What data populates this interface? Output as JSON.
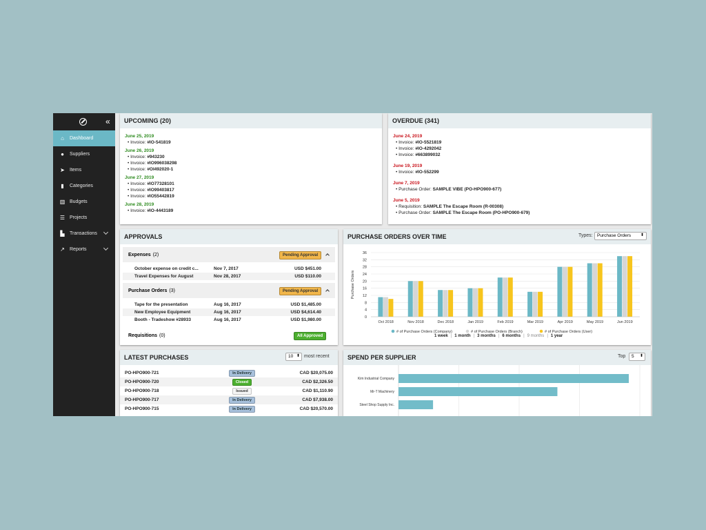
{
  "sidebar": {
    "collapse_icon": "«",
    "items": [
      {
        "label": "Dashboard",
        "icon": "home-icon",
        "active": true
      },
      {
        "label": "Suppliers",
        "icon": "globe-icon"
      },
      {
        "label": "Items",
        "icon": "rocket-icon"
      },
      {
        "label": "Categories",
        "icon": "book-icon"
      },
      {
        "label": "Budgets",
        "icon": "bar-chart-icon"
      },
      {
        "label": "Projects",
        "icon": "list-icon"
      },
      {
        "label": "Transactions",
        "icon": "cart-icon",
        "expandable": true
      },
      {
        "label": "Reports",
        "icon": "line-chart-icon",
        "expandable": true
      }
    ]
  },
  "upcoming": {
    "title": "UPCOMING (20)",
    "groups": [
      {
        "date": "June 25, 2019",
        "items": [
          {
            "label": "Invoice:",
            "value": "#IO-541819"
          }
        ]
      },
      {
        "date": "June 26, 2019",
        "items": [
          {
            "label": "Invoice:",
            "value": "#943230"
          },
          {
            "label": "Invoice:",
            "value": "#IO996038298"
          },
          {
            "label": "Invoice:",
            "value": "#OI492020-1"
          }
        ]
      },
      {
        "date": "June 27, 2019",
        "items": [
          {
            "label": "Invoice:",
            "value": "#IO77328101"
          },
          {
            "label": "Invoice:",
            "value": "#IO99403817"
          },
          {
            "label": "Invoice:",
            "value": "#IO55442819"
          }
        ]
      },
      {
        "date": "June 28, 2019",
        "items": [
          {
            "label": "Invoice:",
            "value": "#IO-4443189"
          }
        ]
      }
    ]
  },
  "overdue": {
    "title": "OVERDUE (341)",
    "groups": [
      {
        "date": "June 24, 2019",
        "items": [
          {
            "label": "Invoice:",
            "value": "#IO-5521819"
          },
          {
            "label": "Invoice:",
            "value": "#IO-4292042"
          },
          {
            "label": "Invoice:",
            "value": "#663899032"
          }
        ]
      },
      {
        "date": "June 19, 2019",
        "items": [
          {
            "label": "Invoice:",
            "value": "#IO-552299"
          }
        ]
      },
      {
        "date": "June 7, 2019",
        "items": [
          {
            "label": "Purchase Order:",
            "value": "SAMPLE VIBE (PO-HPO900-677)"
          }
        ]
      },
      {
        "date": "June 5, 2019",
        "items": [
          {
            "label": "Requisition:",
            "value": "SAMPLE The Escape Room (R-00308)"
          },
          {
            "label": "Purchase Order:",
            "value": "SAMPLE The Escape Room (PO-HPO900-679)"
          }
        ]
      }
    ]
  },
  "approvals": {
    "title": "APPROVALS",
    "expenses": {
      "name": "Expenses",
      "count": "(2)",
      "status": "Pending Approval",
      "rows": [
        {
          "desc": "October expense on credit c...",
          "date": "Nov 7, 2017",
          "amount": "USD $451.00"
        },
        {
          "desc": "Travel Expenses for August",
          "date": "Nov 28, 2017",
          "amount": "USD $110.00"
        }
      ]
    },
    "purchase_orders": {
      "name": "Purchase Orders",
      "count": "(3)",
      "status": "Pending Approval",
      "rows": [
        {
          "desc": "Tape for the presentation",
          "date": "Aug 16, 2017",
          "amount": "USD $1,485.00"
        },
        {
          "desc": "New Employee Equipment",
          "date": "Aug 16, 2017",
          "amount": "USD $4,614.40"
        },
        {
          "desc": "Booth - Tradeshow #28933",
          "date": "Aug 16, 2017",
          "amount": "USD $1,980.00"
        }
      ]
    },
    "requisitions": {
      "name": "Requisitions",
      "count": "(0)",
      "status": "All Approved"
    }
  },
  "latest": {
    "title": "LATEST PURCHASES",
    "count_value": "10",
    "suffix": "most recent",
    "rows": [
      {
        "po": "PO-HPO900-721",
        "status": "In Delivery",
        "kind": "delivery",
        "amount": "CAD $20,075.00"
      },
      {
        "po": "PO-HPO900-720",
        "status": "Closed",
        "kind": "closed",
        "amount": "CAD $2,326.50"
      },
      {
        "po": "PO-HPO900-718",
        "status": "Issued",
        "kind": "issued",
        "amount": "CAD $1,110.90"
      },
      {
        "po": "PO-HPO900-717",
        "status": "In Delivery",
        "kind": "delivery",
        "amount": "CAD $7,938.00"
      },
      {
        "po": "PO-HPO900-715",
        "status": "In Delivery",
        "kind": "delivery",
        "amount": "CAD $20,570.00"
      }
    ]
  },
  "po_chart_card": {
    "title": "PURCHASE ORDERS OVER TIME",
    "types_label": "Types:",
    "types_value": "Purchase Orders",
    "ranges": [
      "1 week",
      "1 month",
      "3 months",
      "6 months",
      "9 months",
      "1 year"
    ],
    "muted_range": "9 months"
  },
  "spend_card": {
    "title": "SPEND PER SUPPLIER",
    "top_label": "Top",
    "top_value": "5"
  },
  "colors": {
    "company": "#6bb8c6",
    "branch": "#d6d6d6",
    "user": "#f7c51d",
    "supplier_bar": "#72bcc9"
  },
  "chart_data": [
    {
      "type": "bar",
      "ylabel": "Purchase Orders",
      "ylim": [
        0,
        36
      ],
      "yticks": [
        0,
        4,
        8,
        12,
        16,
        20,
        24,
        28,
        32,
        36
      ],
      "categories": [
        "Oct 2018",
        "Nov 2018",
        "Dec 2018",
        "Jan 2019",
        "Feb 2019",
        "Mar 2019",
        "Apr 2019",
        "May 2019",
        "Jun 2019"
      ],
      "series": [
        {
          "name": "# of Purchase Orders (Company)",
          "values": [
            11,
            20,
            15,
            16,
            22,
            14,
            28,
            30,
            34
          ]
        },
        {
          "name": "# of Purchase Orders (Branch)",
          "values": [
            11,
            20,
            15,
            16,
            22,
            14,
            28,
            30,
            34
          ]
        },
        {
          "name": "# of Purchase Orders (User)",
          "values": [
            10,
            20,
            15,
            16,
            22,
            14,
            28,
            30,
            34
          ]
        }
      ],
      "legend": "bottom",
      "grid": true
    },
    {
      "type": "bar",
      "orientation": "horizontal",
      "categories": [
        "Kim Industrial Company",
        "Mr-T Machinery",
        "Steel Shop Supply Inc."
      ],
      "values": [
        100,
        69,
        15
      ]
    }
  ]
}
